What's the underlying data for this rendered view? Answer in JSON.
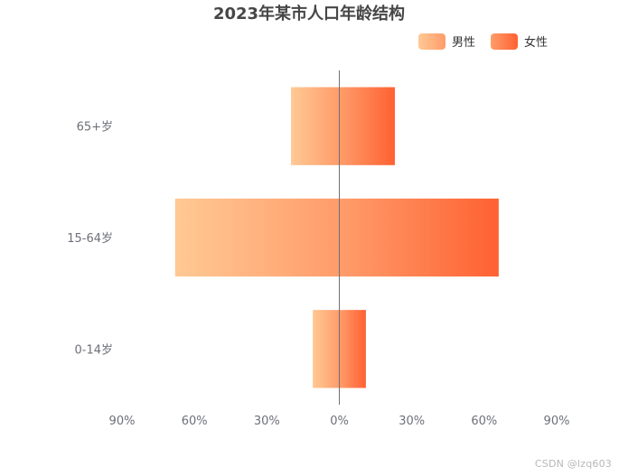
{
  "chart_data": {
    "type": "bar",
    "orientation": "horizontal",
    "layout": "population-pyramid",
    "title": "2023年某市人口年龄结构",
    "categories": [
      "0-14岁",
      "15-64岁",
      "65+岁"
    ],
    "series": [
      {
        "name": "男性",
        "values": [
          -11,
          -68,
          -20
        ],
        "gradient": [
          "#ffc994",
          "#ff9c6a"
        ]
      },
      {
        "name": "女性",
        "values": [
          11,
          66,
          23
        ],
        "gradient": [
          "#ff9d6b",
          "#ff6132"
        ]
      }
    ],
    "xlim": [
      -90,
      90
    ],
    "x_ticks": [
      -90,
      -60,
      -30,
      0,
      30,
      60,
      90
    ],
    "x_tick_labels": [
      "90%",
      "60%",
      "30%",
      "0%",
      "30%",
      "60%",
      "90%"
    ],
    "legend_position": "top-right",
    "grid": false
  },
  "watermark": "CSDN @lzq603",
  "colors": {
    "axis": "#6e7079",
    "title": "#464646"
  }
}
